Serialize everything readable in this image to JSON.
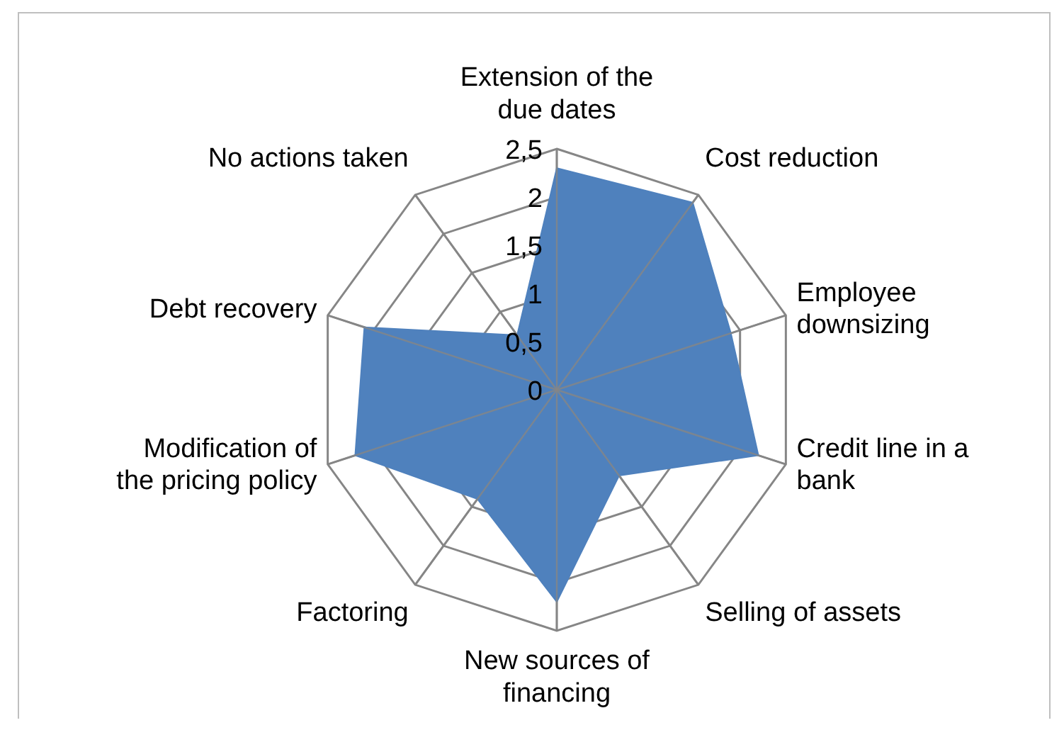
{
  "chart_data": {
    "type": "radar",
    "categories": [
      "Extension of the due dates",
      "Cost reduction",
      "Employee downsizing",
      "Credit line in a bank",
      "Selling of assets",
      "New sources of financing",
      "Factoring",
      "Modification of the pricing policy",
      "Debt recovery",
      "No actions taken"
    ],
    "series": [
      {
        "color": "#4f81bd",
        "values": [
          2.3,
          2.4,
          1.9,
          2.2,
          1.1,
          2.2,
          1.4,
          2.2,
          2.1,
          0.7
        ]
      }
    ],
    "ylim": [
      0,
      2.5
    ],
    "yticks": [
      {
        "value": 0,
        "label": "0"
      },
      {
        "value": 0.5,
        "label": "0,5"
      },
      {
        "value": 1,
        "label": "1"
      },
      {
        "value": 1.5,
        "label": "1,5"
      },
      {
        "value": 2,
        "label": "2"
      },
      {
        "value": 2.5,
        "label": "2,5"
      }
    ],
    "grid": true
  }
}
